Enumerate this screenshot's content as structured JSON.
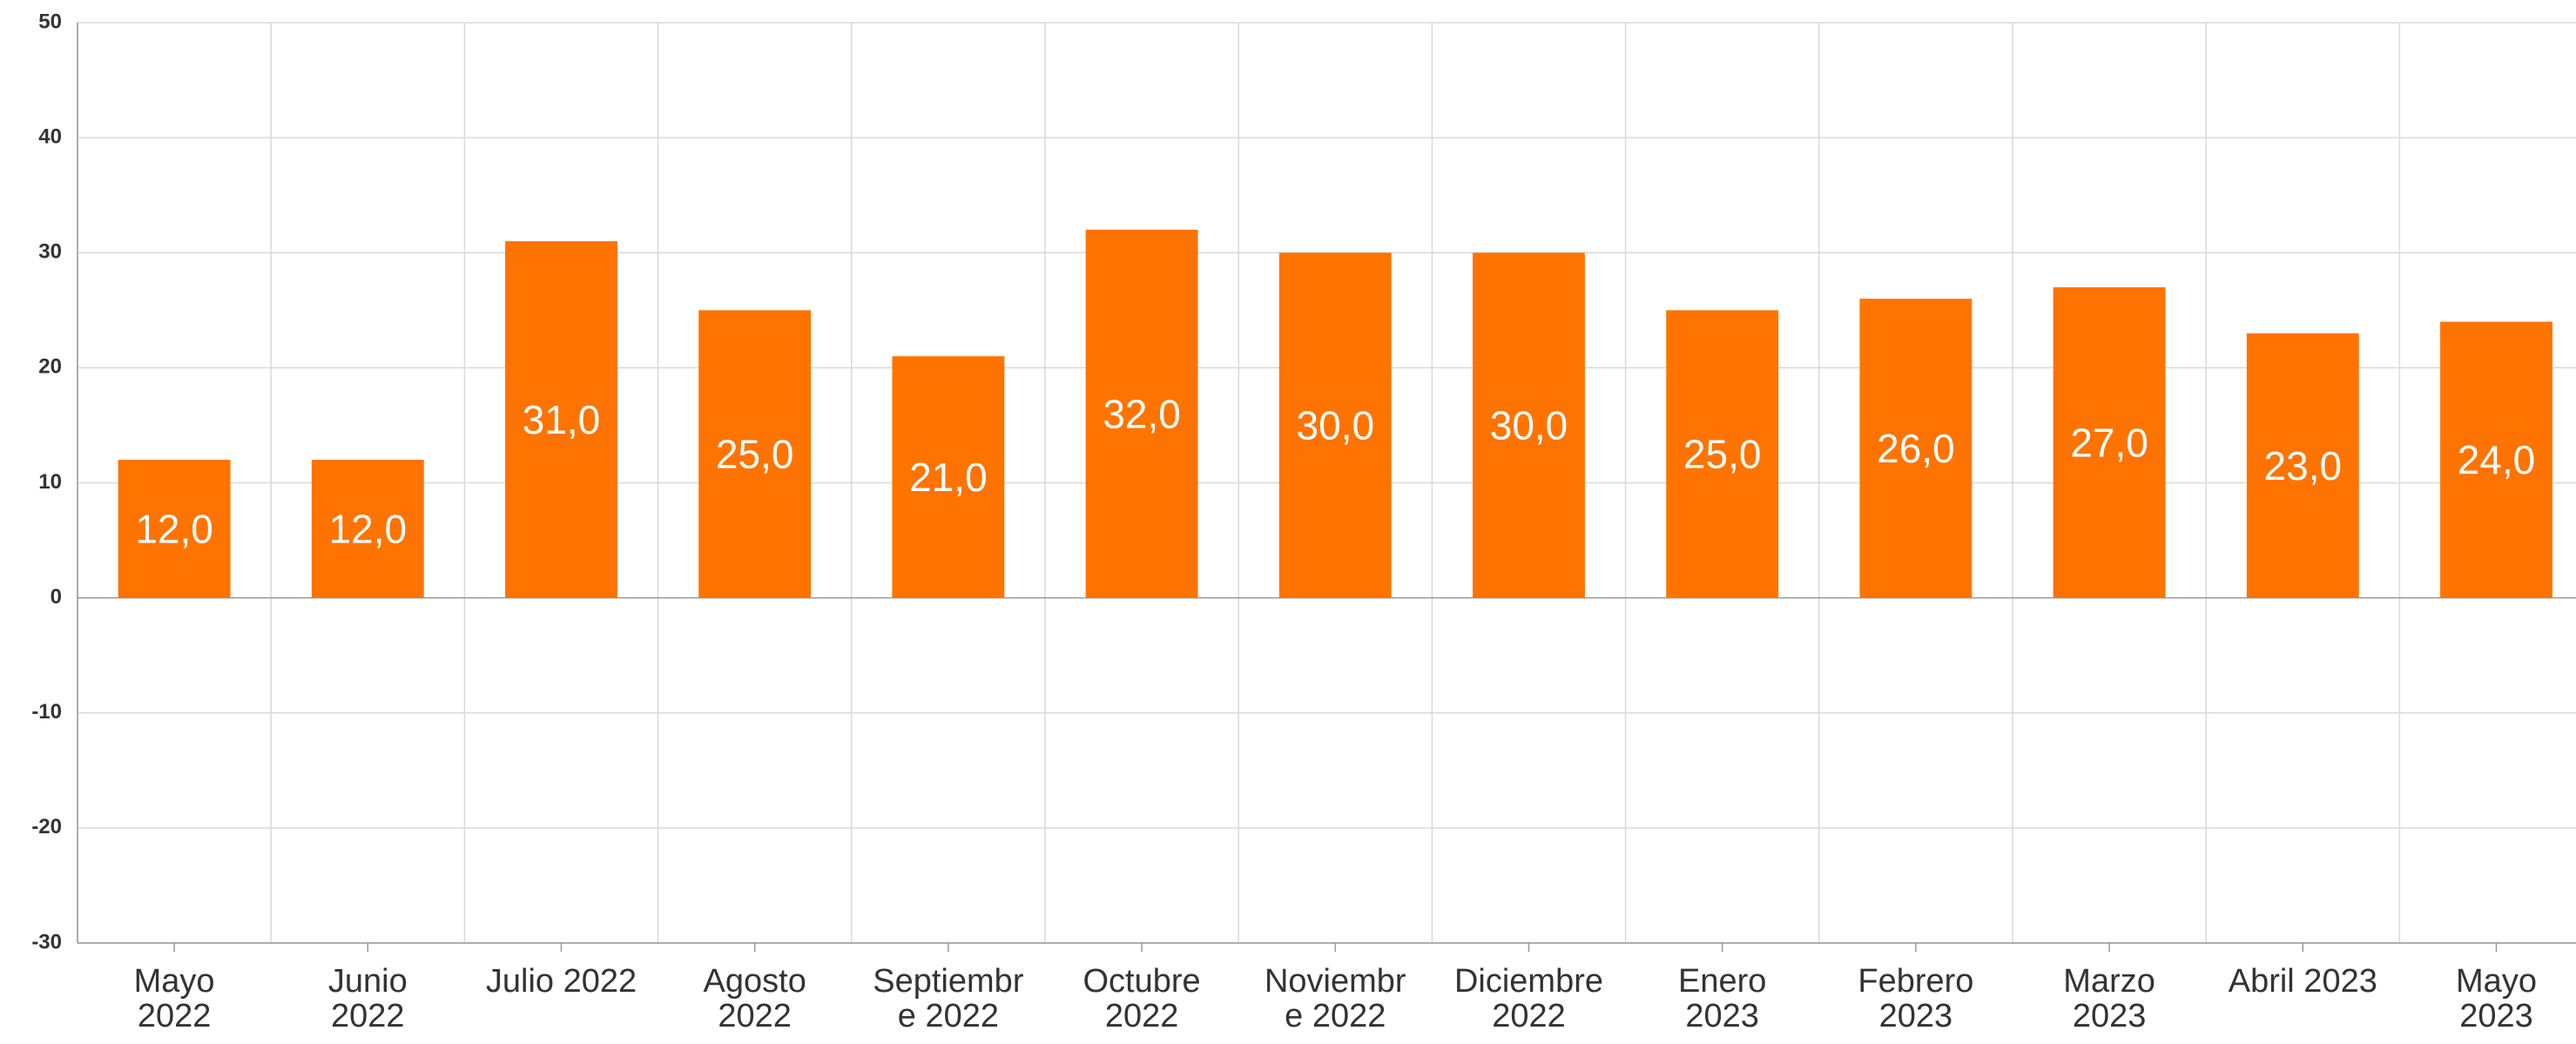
{
  "chart_data": {
    "type": "bar",
    "categories": [
      "Mayo 2022",
      "Junio 2022",
      "Julio 2022",
      "Agosto 2022",
      "Septiembre 2022",
      "Octubre 2022",
      "Noviembre 2022",
      "Diciembre 2022",
      "Enero 2023",
      "Febrero 2023",
      "Marzo 2023",
      "Abril 2023",
      "Mayo 2023"
    ],
    "values": [
      12,
      12,
      31,
      25,
      21,
      32,
      30,
      30,
      25,
      26,
      27,
      23,
      24
    ],
    "value_labels": [
      "12,0",
      "12,0",
      "31,0",
      "25,0",
      "21,0",
      "32,0",
      "30,0",
      "30,0",
      "25,0",
      "26,0",
      "27,0",
      "23,0",
      "24,0"
    ],
    "color": "#ff7300",
    "ylim": [
      -30,
      50
    ],
    "yticks": [
      -30,
      -20,
      -10,
      0,
      10,
      20,
      30,
      40,
      50
    ],
    "grid": true
  }
}
